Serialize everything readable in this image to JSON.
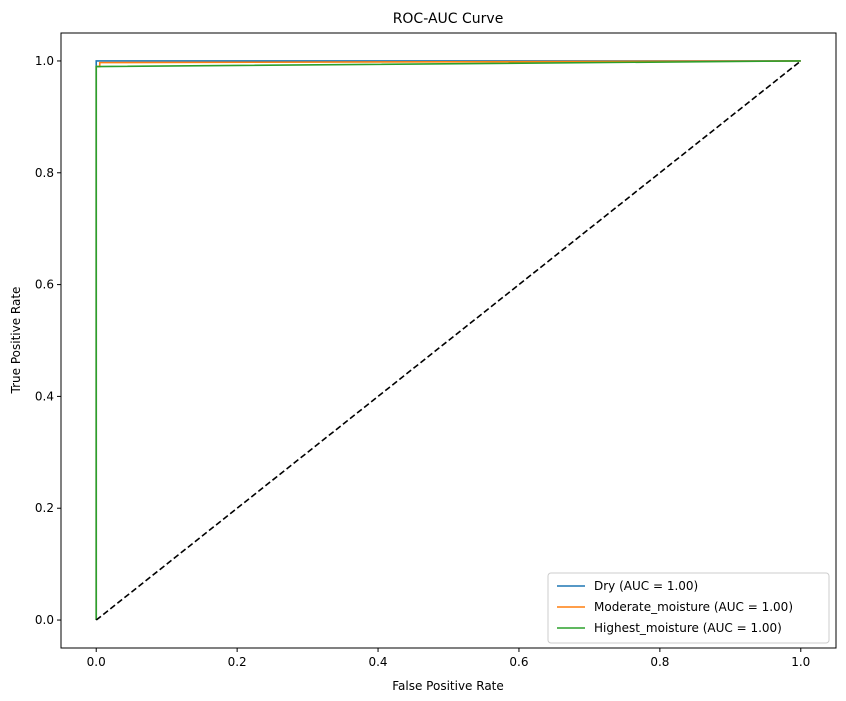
{
  "chart_data": {
    "type": "line",
    "title": "ROC-AUC Curve",
    "xlabel": "False Positive Rate",
    "ylabel": "True Positive Rate",
    "xlim": [
      -0.05,
      1.05
    ],
    "ylim": [
      -0.05,
      1.05
    ],
    "xticks": [
      0.0,
      0.2,
      0.4,
      0.6,
      0.8,
      1.0
    ],
    "yticks": [
      0.0,
      0.2,
      0.4,
      0.6,
      0.8,
      1.0
    ],
    "xtick_labels": [
      "0.0",
      "0.2",
      "0.4",
      "0.6",
      "0.8",
      "1.0"
    ],
    "ytick_labels": [
      "0.0",
      "0.2",
      "0.4",
      "0.6",
      "0.8",
      "1.0"
    ],
    "grid": false,
    "legend_position": "lower-right",
    "series": [
      {
        "name": "Dry (AUC = 1.00)",
        "color": "#1f77b4",
        "x": [
          0.0,
          0.0,
          0.0,
          1.0
        ],
        "y": [
          0.0,
          0.995,
          1.0,
          1.0
        ]
      },
      {
        "name": "Moderate_moisture (AUC = 1.00)",
        "color": "#ff7f0e",
        "x": [
          0.0,
          0.0,
          0.005,
          0.005,
          1.0
        ],
        "y": [
          0.0,
          0.99,
          0.99,
          0.997,
          1.0
        ]
      },
      {
        "name": "Highest_moisture (AUC = 1.00)",
        "color": "#2ca02c",
        "x": [
          0.0,
          0.0,
          0.0,
          1.0
        ],
        "y": [
          0.0,
          0.99,
          0.99,
          1.0
        ]
      },
      {
        "name": "",
        "color": "#000000",
        "dashed": true,
        "x": [
          0.0,
          1.0
        ],
        "y": [
          0.0,
          1.0
        ]
      }
    ]
  }
}
